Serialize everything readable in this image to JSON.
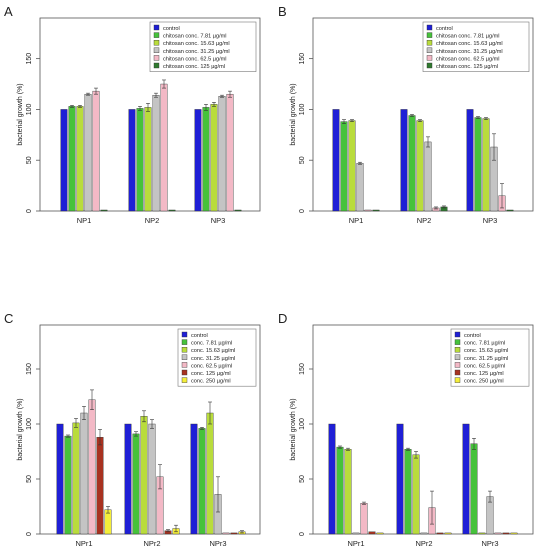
{
  "chart_data": [
    {
      "panel_label": "A",
      "type": "bar",
      "ylabel": "bacterial growth (%)",
      "ylim": [
        0,
        190
      ],
      "yticks": [
        "0",
        "50",
        "100",
        "150"
      ],
      "categories": [
        "NP1",
        "NP2",
        "NP3"
      ],
      "legend_position": "top-right",
      "series": [
        {
          "name": "control",
          "color": "#1f1fd6",
          "values": [
            100,
            100,
            100
          ],
          "errors": [
            0,
            0,
            0
          ]
        },
        {
          "name": "chitosan conc.   7.81 µg/ml",
          "color": "#46c23b",
          "values": [
            103,
            101,
            102
          ],
          "errors": [
            1,
            2,
            3
          ]
        },
        {
          "name": "chitosan conc.  15.63 µg/ml",
          "color": "#b9dc3c",
          "values": [
            103,
            102,
            105
          ],
          "errors": [
            1,
            4,
            2
          ]
        },
        {
          "name": "chitosan conc.  31.25 µg/ml",
          "color": "#c4c4c4",
          "values": [
            115,
            114,
            113
          ],
          "errors": [
            1,
            2,
            1
          ]
        },
        {
          "name": "chitosan conc.  62.5  µg/ml",
          "color": "#f3b9c6",
          "values": [
            118,
            125,
            115
          ],
          "errors": [
            3,
            4,
            3
          ]
        },
        {
          "name": "chitosan conc. 125    µg/ml",
          "color": "#2f7a2f",
          "values": [
            1,
            1,
            1
          ],
          "errors": [
            0,
            0,
            0
          ]
        }
      ]
    },
    {
      "panel_label": "B",
      "type": "bar",
      "ylabel": "bacterial growth (%)",
      "ylim": [
        0,
        190
      ],
      "yticks": [
        "0",
        "50",
        "100",
        "150"
      ],
      "categories": [
        "NP1",
        "NP2",
        "NP3"
      ],
      "legend_position": "top-right",
      "series": [
        {
          "name": "control",
          "color": "#1f1fd6",
          "values": [
            100,
            100,
            100
          ],
          "errors": [
            0,
            0,
            0
          ]
        },
        {
          "name": "chitosan conc.   7.81 µg/ml",
          "color": "#46c23b",
          "values": [
            88,
            94,
            92
          ],
          "errors": [
            2,
            1,
            1
          ]
        },
        {
          "name": "chitosan conc.  15.63 µg/ml",
          "color": "#b9dc3c",
          "values": [
            89,
            89,
            91
          ],
          "errors": [
            1,
            1,
            1
          ]
        },
        {
          "name": "chitosan conc.  31.25 µg/ml",
          "color": "#c4c4c4",
          "values": [
            47,
            68,
            63
          ],
          "errors": [
            1,
            5,
            13
          ]
        },
        {
          "name": "chitosan conc.  62.5  µg/ml",
          "color": "#f3b9c6",
          "values": [
            1,
            3,
            15
          ],
          "errors": [
            0,
            1,
            12
          ]
        },
        {
          "name": "chitosan conc. 125    µg/ml",
          "color": "#2f7a2f",
          "values": [
            1,
            4,
            1
          ],
          "errors": [
            0,
            1,
            0
          ]
        }
      ]
    },
    {
      "panel_label": "C",
      "type": "bar",
      "ylabel": "bacterial growth (%)",
      "ylim": [
        0,
        190
      ],
      "yticks": [
        "0",
        "50",
        "100",
        "150"
      ],
      "categories": [
        "NPr1",
        "NPr2",
        "NPr3"
      ],
      "legend_position": "top-right",
      "series": [
        {
          "name": "control",
          "color": "#1f1fd6",
          "values": [
            100,
            100,
            100
          ],
          "errors": [
            0,
            0,
            0
          ]
        },
        {
          "name": "conc.   7.81 µg/ml",
          "color": "#46c23b",
          "values": [
            89,
            91,
            96
          ],
          "errors": [
            1,
            2,
            1
          ]
        },
        {
          "name": "conc.  15.63 µg/ml",
          "color": "#b9dc3c",
          "values": [
            101,
            107,
            110
          ],
          "errors": [
            4,
            5,
            10
          ]
        },
        {
          "name": "conc.  31.25 µg/ml",
          "color": "#c4c4c4",
          "values": [
            110,
            100,
            36
          ],
          "errors": [
            6,
            4,
            16
          ]
        },
        {
          "name": "conc.  62.5  µg/ml",
          "color": "#f3b9c6",
          "values": [
            122,
            52,
            1
          ],
          "errors": [
            9,
            11,
            0
          ]
        },
        {
          "name": "conc. 125    µg/ml",
          "color": "#a83220",
          "values": [
            88,
            3,
            1
          ],
          "errors": [
            7,
            1,
            0
          ]
        },
        {
          "name": "conc. 250    µg/ml",
          "color": "#f4ee3a",
          "values": [
            22,
            5,
            2
          ],
          "errors": [
            3,
            3,
            1
          ]
        }
      ]
    },
    {
      "panel_label": "D",
      "type": "bar",
      "ylabel": "bacterial growth (%)",
      "ylim": [
        0,
        190
      ],
      "yticks": [
        "0",
        "50",
        "100",
        "150"
      ],
      "categories": [
        "NPr1",
        "NPr2",
        "NPr3"
      ],
      "legend_position": "top-right",
      "series": [
        {
          "name": "control",
          "color": "#1f1fd6",
          "values": [
            100,
            100,
            100
          ],
          "errors": [
            0,
            0,
            0
          ]
        },
        {
          "name": "conc.   7.81 µg/ml",
          "color": "#46c23b",
          "values": [
            79,
            77,
            82
          ],
          "errors": [
            1,
            1,
            5
          ]
        },
        {
          "name": "conc.  15.63 µg/ml",
          "color": "#b9dc3c",
          "values": [
            77,
            72,
            1
          ],
          "errors": [
            1,
            3,
            0
          ]
        },
        {
          "name": "conc.  31.25 µg/ml",
          "color": "#c4c4c4",
          "values": [
            1,
            1,
            34
          ],
          "errors": [
            0,
            0,
            5
          ]
        },
        {
          "name": "conc.  62.5  µg/ml",
          "color": "#f3b9c6",
          "values": [
            28,
            24,
            1
          ],
          "errors": [
            1,
            15,
            0
          ]
        },
        {
          "name": "conc. 125    µg/ml",
          "color": "#a83220",
          "values": [
            2,
            1,
            1
          ],
          "errors": [
            0,
            0,
            0
          ]
        },
        {
          "name": "conc. 250    µg/ml",
          "color": "#f4ee3a",
          "values": [
            1,
            1,
            1
          ],
          "errors": [
            0,
            0,
            0
          ]
        }
      ]
    }
  ]
}
